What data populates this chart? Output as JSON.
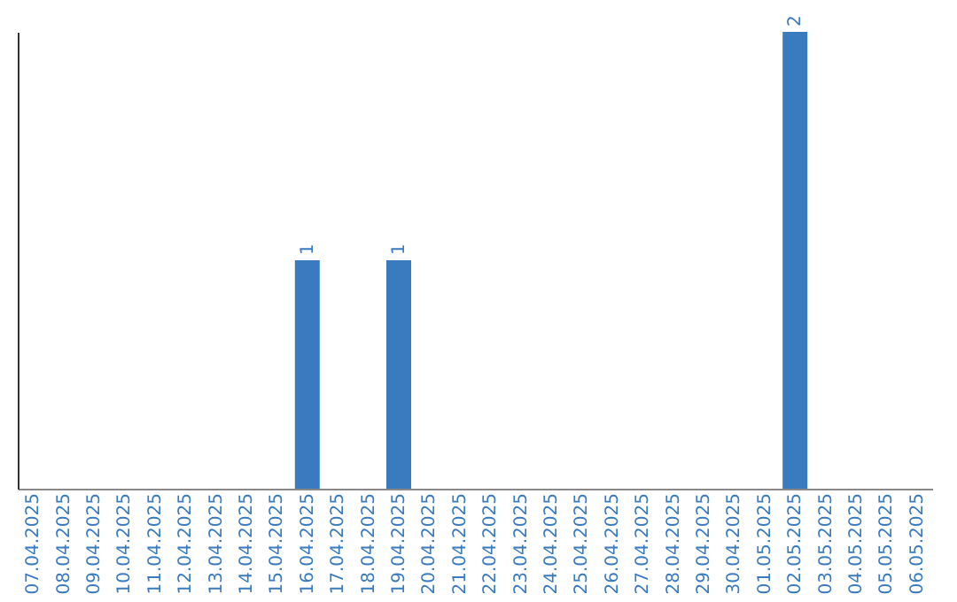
{
  "chart_data": {
    "type": "bar",
    "categories": [
      "07.04.2025",
      "08.04.2025",
      "09.04.2025",
      "10.04.2025",
      "11.04.2025",
      "12.04.2025",
      "13.04.2025",
      "14.04.2025",
      "15.04.2025",
      "16.04.2025",
      "17.04.2025",
      "18.04.2025",
      "19.04.2025",
      "20.04.2025",
      "21.04.2025",
      "22.04.2025",
      "23.04.2025",
      "24.04.2025",
      "25.04.2025",
      "26.04.2025",
      "27.04.2025",
      "28.04.2025",
      "29.04.2025",
      "30.04.2025",
      "01.05.2025",
      "02.05.2025",
      "03.05.2025",
      "04.05.2025",
      "05.05.2025",
      "06.05.2025"
    ],
    "series": [
      {
        "color": "#3a7bbf",
        "values": [
          0,
          0,
          0,
          0,
          0,
          0,
          0,
          0,
          0,
          1,
          0,
          0,
          1,
          0,
          0,
          0,
          0,
          0,
          0,
          0,
          0,
          0,
          0,
          0,
          0,
          2,
          0,
          0,
          0,
          0
        ],
        "value_labels": [
          null,
          null,
          null,
          null,
          null,
          null,
          null,
          null,
          null,
          "1",
          null,
          null,
          "1",
          null,
          null,
          null,
          null,
          null,
          null,
          null,
          null,
          null,
          null,
          null,
          null,
          "2",
          null,
          null,
          null,
          null
        ]
      }
    ],
    "grid": false,
    "tick_labels": "x"
  }
}
